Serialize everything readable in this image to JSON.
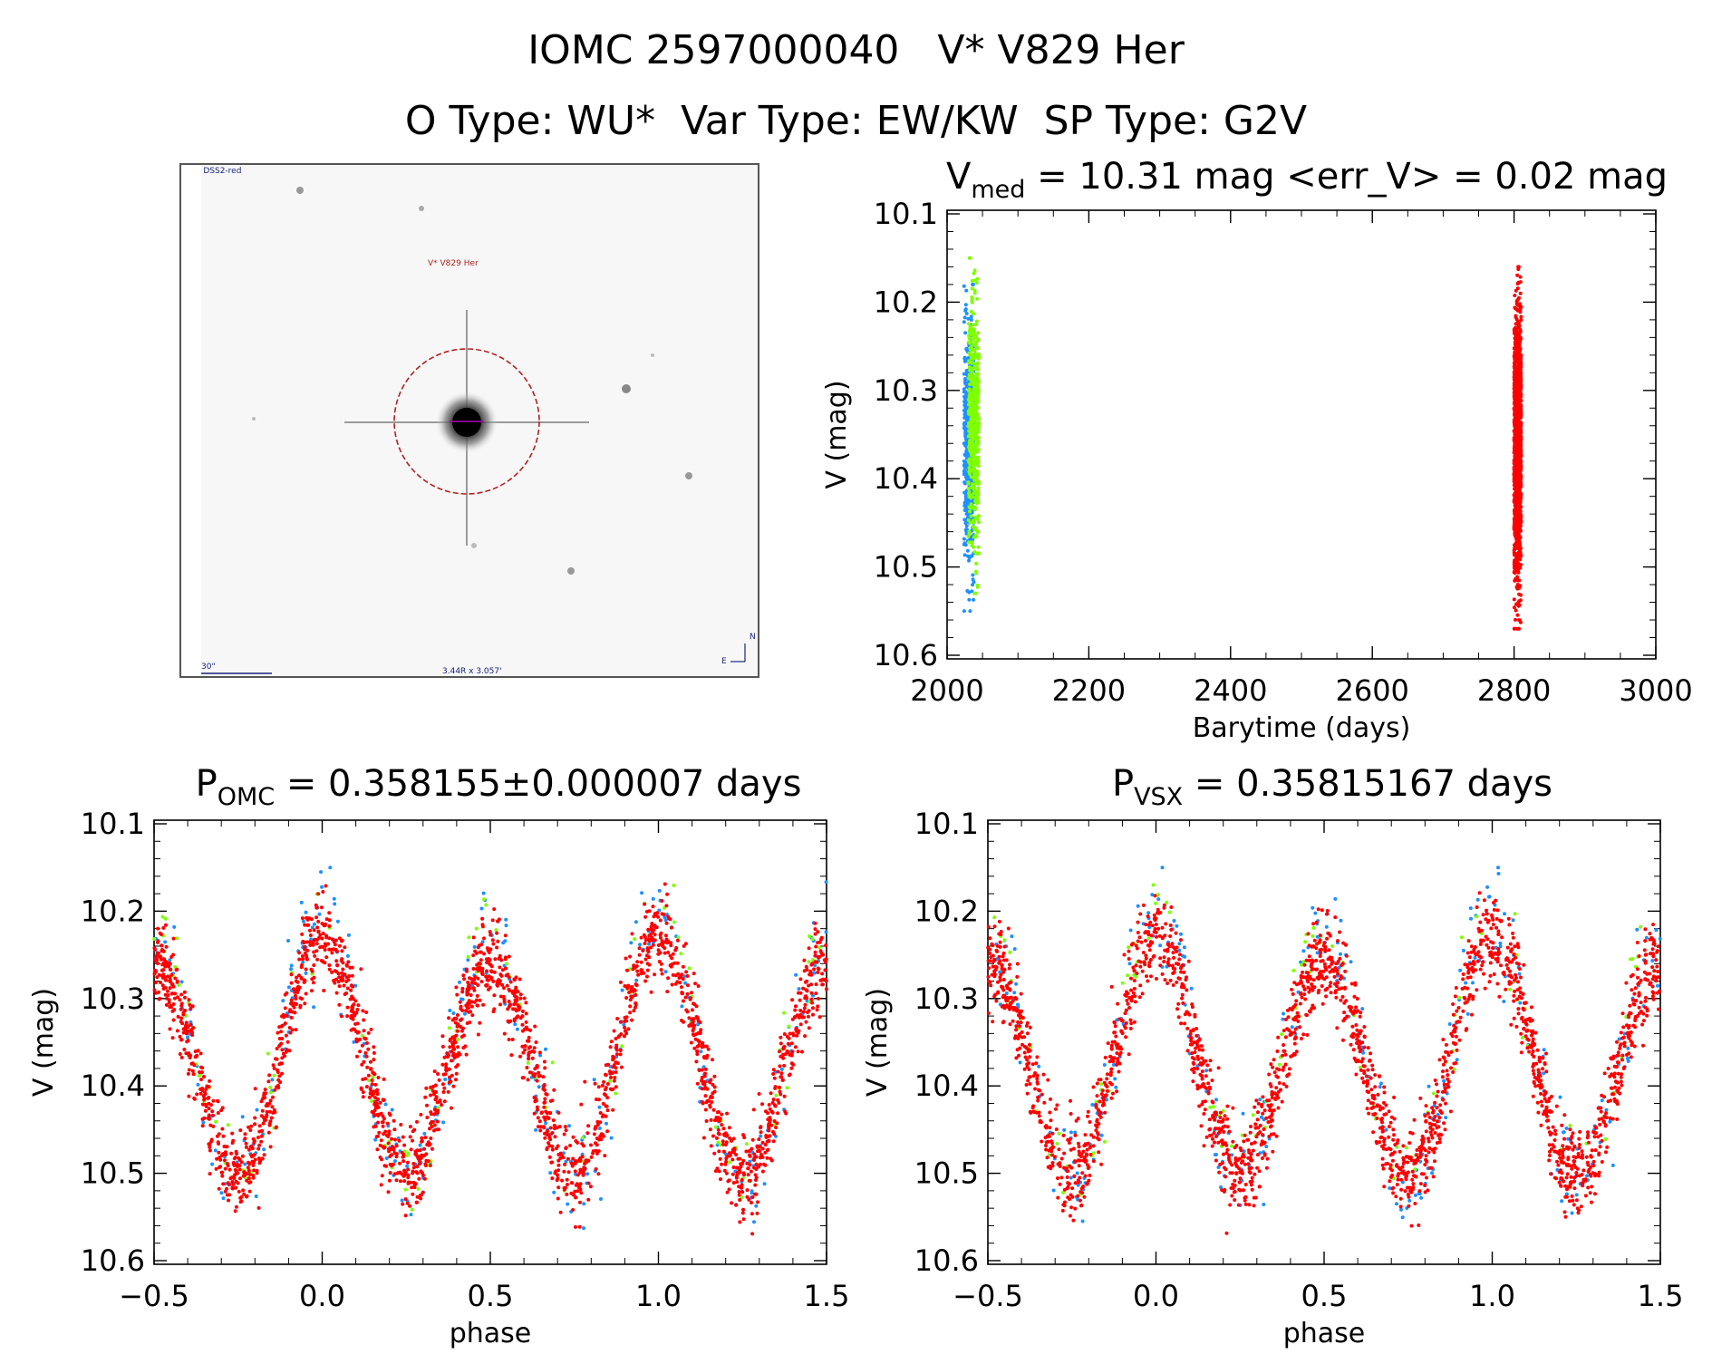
{
  "header": {
    "line1": "IOMC 2597000040   V* V829 Her",
    "line2": "O Type: WU*  Var Type: EW/KW  SP Type: G2V"
  },
  "image_panel": {
    "survey_label": "ESO DSS2-red",
    "target_label": "V* V829 Her",
    "scale_label": "30\"",
    "fov_label": "3.44R x 3.057'",
    "compass_n": "N",
    "compass_e": "E"
  },
  "colors": {
    "blue": "#1e90ff",
    "green": "#7fff00",
    "red": "#ff0000"
  },
  "chart_data": [
    {
      "type": "scatter",
      "title": "V_med = 10.31 mag <err_V> = 0.02 mag",
      "title_parts": {
        "pre": "V",
        "sub": "med",
        "post": " = 10.31 mag <err_V> = 0.02 mag"
      },
      "xlabel": "Barytime (days)",
      "ylabel": "V (mag)",
      "xlim": [
        2000,
        3000
      ],
      "ylim": [
        10.6,
        10.1
      ],
      "xticks": [
        "2000",
        "2200",
        "2400",
        "2600",
        "2800",
        "3000"
      ],
      "yticks": [
        "10.1",
        "10.2",
        "10.3",
        "10.4",
        "10.5",
        "10.6"
      ],
      "y_reversed": true,
      "series": [
        {
          "color": "blue",
          "x_range": [
            2024,
            2038
          ],
          "y_range": [
            10.15,
            10.52
          ]
        },
        {
          "color": "green",
          "x_range": [
            2030,
            2045
          ],
          "y_range": [
            10.17,
            10.55
          ]
        },
        {
          "color": "red",
          "x_range": [
            2800,
            2810
          ],
          "y_range": [
            10.13,
            10.54
          ]
        }
      ]
    },
    {
      "type": "scatter",
      "title": "P_OMC = 0.358155±0.000007 days",
      "title_parts": {
        "pre": "P",
        "sub": "OMC",
        "post": " = 0.358155±0.000007 days"
      },
      "xlabel": "phase",
      "ylabel": "V (mag)",
      "xlim": [
        -0.5,
        1.5
      ],
      "ylim": [
        10.6,
        10.1
      ],
      "xticks": [
        "−0.5",
        "0.0",
        "0.5",
        "1.0",
        "1.5"
      ],
      "yticks": [
        "10.1",
        "10.2",
        "10.3",
        "10.4",
        "10.5",
        "10.6"
      ],
      "y_reversed": true,
      "light_curve": {
        "maxima_phase": [
          -0.25,
          0.25,
          0.75,
          1.25
        ],
        "minima_phase": [
          0.0,
          0.5,
          1.0
        ],
        "max_mag": 10.2,
        "primary_min_mag": 10.47,
        "secondary_min_mag": 10.44
      },
      "series_colors": [
        "blue",
        "green",
        "red"
      ]
    },
    {
      "type": "scatter",
      "title": "P_VSX = 0.35815167 days",
      "title_parts": {
        "pre": "P",
        "sub": "VSX",
        "post": " = 0.35815167 days"
      },
      "xlabel": "phase",
      "ylabel": "V (mag)",
      "xlim": [
        -0.5,
        1.5
      ],
      "ylim": [
        10.6,
        10.1
      ],
      "xticks": [
        "−0.5",
        "0.0",
        "0.5",
        "1.0",
        "1.5"
      ],
      "yticks": [
        "10.1",
        "10.2",
        "10.3",
        "10.4",
        "10.5",
        "10.6"
      ],
      "y_reversed": true,
      "light_curve": {
        "maxima_phase": [
          -0.25,
          0.25,
          0.75,
          1.25
        ],
        "minima_phase": [
          0.0,
          0.5,
          1.0
        ],
        "max_mag": 10.2,
        "primary_min_mag": 10.47,
        "secondary_min_mag": 10.44
      },
      "series_colors": [
        "blue",
        "green",
        "red"
      ]
    }
  ]
}
